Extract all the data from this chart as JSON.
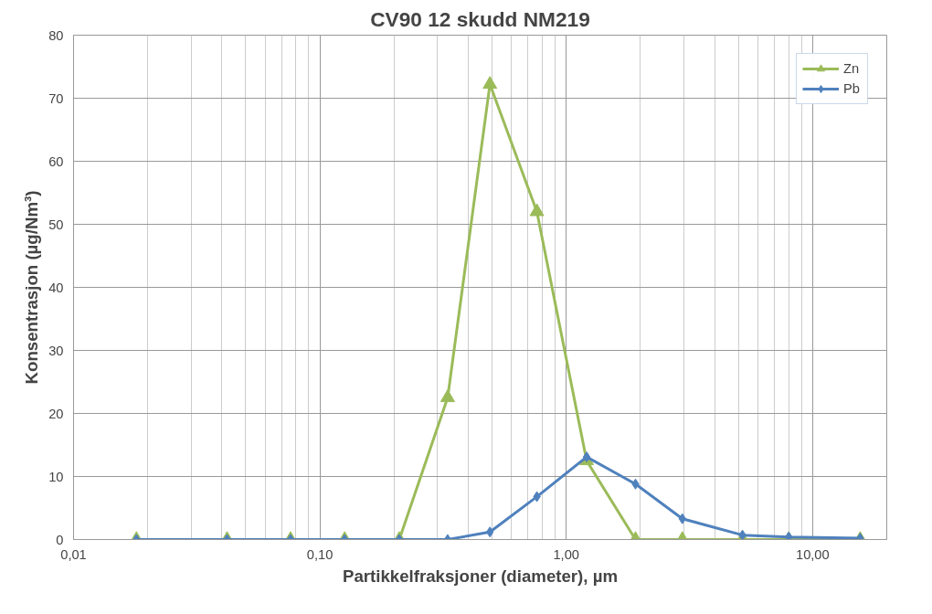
{
  "chart_data": {
    "type": "line",
    "title": "CV90 12 skudd NM219",
    "xlabel": "Partikkelfraksjoner (diameter), µm",
    "ylabel": "Konsentrasjon (µg/Nm³)",
    "x": [
      0.018,
      0.042,
      0.076,
      0.126,
      0.21,
      0.33,
      0.49,
      0.76,
      1.21,
      1.91,
      2.96,
      5.19,
      8.0,
      15.6
    ],
    "series": [
      {
        "name": "Zn",
        "color": "#9bbb59",
        "marker": "triangle",
        "values": [
          0,
          0,
          0,
          0,
          0,
          22.5,
          72.2,
          52.0,
          12.5,
          0,
          0,
          0,
          0,
          0
        ]
      },
      {
        "name": "Pb",
        "color": "#4f81bd",
        "marker": "diamond",
        "values": [
          0,
          0,
          0,
          0,
          0,
          0,
          1.2,
          6.8,
          13.1,
          8.8,
          3.3,
          0.7,
          0.4,
          0.2
        ]
      }
    ],
    "log": "x",
    "xlim": [
      0.01,
      20
    ],
    "xticks": [
      {
        "value": 0.01,
        "label": "0,01"
      },
      {
        "value": 0.1,
        "label": "0,10"
      },
      {
        "value": 1,
        "label": "1,00"
      },
      {
        "value": 10,
        "label": "10,00"
      }
    ],
    "ylim": [
      0,
      80
    ],
    "yticks": [
      0,
      10,
      20,
      30,
      40,
      50,
      60,
      70,
      80
    ],
    "grid": true,
    "legend": "top right",
    "line_style": "solid"
  }
}
